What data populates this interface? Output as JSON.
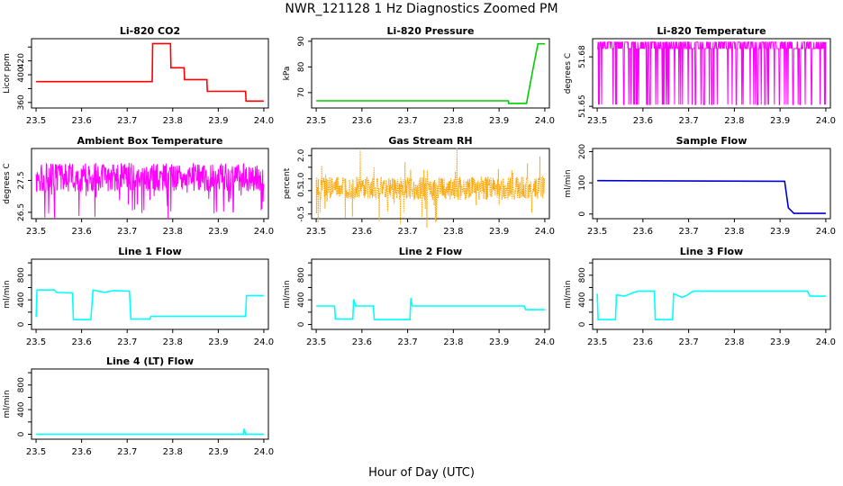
{
  "title": "NWR_121128  1 Hz Diagnostics Zoomed PM",
  "xlabel": "Hour of Day (UTC)",
  "chart_data": [
    {
      "type": "line",
      "title": "Li-820 CO2",
      "ylabel": "Licor ppm",
      "color": "#ff0000",
      "xlim": [
        23.49,
        24.01
      ],
      "ylim": [
        352,
        452
      ],
      "xticks": [
        23.5,
        23.6,
        23.7,
        23.8,
        23.9,
        24.0
      ],
      "yticks": [
        360,
        380,
        400,
        420,
        440
      ],
      "ytick_labels": [
        "360",
        "",
        "400",
        "420",
        ""
      ],
      "series": [
        {
          "x": [
            23.5,
            23.755,
            23.756,
            23.795,
            23.796,
            23.825,
            23.826,
            23.875,
            23.876,
            23.96,
            23.961,
            24.0
          ],
          "y": [
            390,
            390,
            445,
            445,
            410,
            410,
            393,
            393,
            376,
            376,
            362,
            362
          ]
        }
      ]
    },
    {
      "type": "line",
      "title": "Li-820 Pressure",
      "ylabel": "kPa",
      "color": "#00cc00",
      "xlim": [
        23.49,
        24.01
      ],
      "ylim": [
        64,
        91
      ],
      "xticks": [
        23.5,
        23.6,
        23.7,
        23.8,
        23.9,
        24.0
      ],
      "yticks": [
        70,
        80,
        90
      ],
      "ytick_labels": [
        "70",
        "80",
        "90"
      ],
      "series": [
        {
          "x": [
            23.5,
            23.92,
            23.921,
            23.96,
            23.975,
            23.985,
            24.0
          ],
          "y": [
            66.8,
            66.8,
            65.8,
            65.8,
            80,
            89,
            89
          ]
        }
      ]
    },
    {
      "type": "line",
      "title": "Li-820 Temperature",
      "ylabel": "degrees C",
      "color": "#ff00ff",
      "xlim": [
        23.49,
        24.01
      ],
      "ylim": [
        51.649,
        51.691
      ],
      "xticks": [
        23.5,
        23.6,
        23.7,
        23.8,
        23.9,
        24.0
      ],
      "yticks": [
        51.65,
        51.68
      ],
      "ytick_labels": [
        "51.65",
        "51.68"
      ],
      "series": [
        {
          "x": [
            23.5,
            24.0
          ],
          "y": [
            51.67,
            51.67
          ]
        }
      ]
    },
    {
      "type": "line",
      "title": "Ambient Box Temperature",
      "ylabel": "degrees C",
      "color": "#ff00ff",
      "xlim": [
        23.49,
        24.01
      ],
      "ylim": [
        26.3,
        28.5
      ],
      "xticks": [
        23.5,
        23.6,
        23.7,
        23.8,
        23.9,
        24.0
      ],
      "yticks": [
        26.5,
        27.5
      ],
      "ytick_labels": [
        "26.5",
        "27.5"
      ],
      "series": [
        {
          "x": [
            23.5,
            24.0
          ],
          "y": [
            27.6,
            27.6
          ]
        }
      ]
    },
    {
      "type": "line",
      "title": "Gas Stream RH",
      "ylabel": "percent",
      "color": "#ffa500",
      "xlim": [
        23.49,
        24.01
      ],
      "ylim": [
        -0.7,
        2.3
      ],
      "xticks": [
        23.5,
        23.6,
        23.7,
        23.8,
        23.9,
        24.0
      ],
      "yticks": [
        -0.5,
        0.0,
        0.5,
        1.0,
        1.5,
        2.0
      ],
      "ytick_labels": [
        "-0.5",
        "",
        "0.5",
        "1.0",
        "",
        "2.0"
      ],
      "series": [
        {
          "x": [
            23.5,
            24.0
          ],
          "y": [
            0.6,
            0.6
          ]
        }
      ]
    },
    {
      "type": "line",
      "title": "Sample Flow",
      "ylabel": "ml/min",
      "color": "#0000cc",
      "xlim": [
        23.49,
        24.01
      ],
      "ylim": [
        -15,
        210
      ],
      "xticks": [
        23.5,
        23.6,
        23.7,
        23.8,
        23.9,
        24.0
      ],
      "yticks": [
        0,
        100,
        200
      ],
      "ytick_labels": [
        "0",
        "100",
        "200"
      ],
      "series": [
        {
          "x": [
            23.5,
            23.91,
            23.918,
            23.93,
            24.0
          ],
          "y": [
            107,
            105,
            20,
            2,
            2
          ]
        }
      ]
    },
    {
      "type": "line",
      "title": "Line 1 Flow",
      "ylabel": "ml/min",
      "color": "#00ffff",
      "xlim": [
        23.49,
        24.01
      ],
      "ylim": [
        -80,
        1060
      ],
      "xticks": [
        23.5,
        23.6,
        23.7,
        23.8,
        23.9,
        24.0
      ],
      "yticks": [
        0,
        200,
        400,
        600,
        800,
        1000
      ],
      "ytick_labels": [
        "0",
        "",
        "400",
        "",
        "800",
        ""
      ],
      "series": [
        {
          "x": [
            23.5,
            23.502,
            23.54,
            23.545,
            23.58,
            23.582,
            23.62,
            23.625,
            23.65,
            23.67,
            23.705,
            23.708,
            23.75,
            23.752,
            23.96,
            23.962,
            24.0
          ],
          "y": [
            120,
            560,
            560,
            520,
            510,
            80,
            80,
            560,
            520,
            550,
            540,
            90,
            90,
            130,
            130,
            470,
            470
          ]
        }
      ]
    },
    {
      "type": "line",
      "title": "Line 2 Flow",
      "ylabel": "ml/min",
      "color": "#00ffff",
      "xlim": [
        23.49,
        24.01
      ],
      "ylim": [
        -80,
        1060
      ],
      "xticks": [
        23.5,
        23.6,
        23.7,
        23.8,
        23.9,
        24.0
      ],
      "yticks": [
        0,
        200,
        400,
        600,
        800,
        1000
      ],
      "ytick_labels": [
        "0",
        "",
        "400",
        "",
        "800",
        ""
      ],
      "series": [
        {
          "x": [
            23.5,
            23.54,
            23.542,
            23.58,
            23.582,
            23.586,
            23.625,
            23.627,
            23.665,
            23.667,
            23.705,
            23.707,
            23.71,
            23.955,
            23.958,
            24.0
          ],
          "y": [
            300,
            300,
            90,
            90,
            410,
            300,
            300,
            80,
            80,
            80,
            80,
            430,
            300,
            300,
            240,
            240
          ]
        }
      ]
    },
    {
      "type": "line",
      "title": "Line 3 Flow",
      "ylabel": "ml/min",
      "color": "#00ffff",
      "xlim": [
        23.49,
        24.01
      ],
      "ylim": [
        -80,
        1060
      ],
      "xticks": [
        23.5,
        23.6,
        23.7,
        23.8,
        23.9,
        24.0
      ],
      "yticks": [
        0,
        200,
        400,
        600,
        800,
        1000
      ],
      "ytick_labels": [
        "0",
        "",
        "400",
        "",
        "800",
        ""
      ],
      "series": [
        {
          "x": [
            23.5,
            23.502,
            23.54,
            23.542,
            23.56,
            23.58,
            23.59,
            23.625,
            23.627,
            23.665,
            23.667,
            23.685,
            23.695,
            23.71,
            23.96,
            23.965,
            24.0
          ],
          "y": [
            500,
            80,
            80,
            480,
            460,
            520,
            540,
            540,
            80,
            80,
            500,
            440,
            470,
            540,
            540,
            460,
            460
          ]
        }
      ]
    },
    {
      "type": "line",
      "title": "Line 4 (LT) Flow",
      "ylabel": "ml/min",
      "color": "#00ffff",
      "xlim": [
        23.49,
        24.01
      ],
      "ylim": [
        -80,
        1060
      ],
      "xticks": [
        23.5,
        23.6,
        23.7,
        23.8,
        23.9,
        24.0
      ],
      "yticks": [
        0,
        200,
        400,
        600,
        800,
        1000
      ],
      "ytick_labels": [
        "0",
        "",
        "400",
        "",
        "800",
        ""
      ],
      "series": [
        {
          "x": [
            23.5,
            23.955,
            23.957,
            23.96,
            24.0
          ],
          "y": [
            2,
            2,
            90,
            2,
            2
          ]
        }
      ]
    }
  ]
}
